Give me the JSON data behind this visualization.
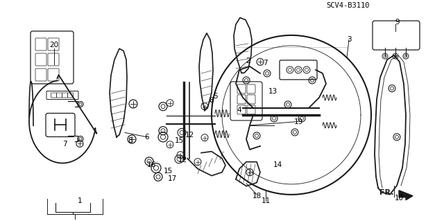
{
  "background_color": "#ffffff",
  "line_color": "#1a1a1a",
  "label_color": "#000000",
  "figsize": [
    6.4,
    3.19
  ],
  "dpi": 100,
  "diagram_id": "SCV4-B3110",
  "fr_text": "FR.",
  "parts": {
    "labels": [
      "1",
      "2",
      "3",
      "4",
      "5",
      "6",
      "7",
      "7",
      "8",
      "8",
      "9",
      "10",
      "11",
      "12",
      "12",
      "13",
      "14",
      "15",
      "15",
      "16",
      "17",
      "18",
      "19",
      "20"
    ],
    "x": [
      0.175,
      0.36,
      0.575,
      0.345,
      0.31,
      0.215,
      0.095,
      0.385,
      0.185,
      0.305,
      0.74,
      0.87,
      0.483,
      0.265,
      0.278,
      0.4,
      0.4,
      0.248,
      0.263,
      0.222,
      0.25,
      0.378,
      0.432,
      0.09
    ],
    "y": [
      0.9,
      0.27,
      0.215,
      0.5,
      0.435,
      0.59,
      0.645,
      0.285,
      0.615,
      0.455,
      0.115,
      0.88,
      0.905,
      0.72,
      0.61,
      0.425,
      0.74,
      0.775,
      0.64,
      0.745,
      0.808,
      0.882,
      0.55,
      0.225
    ]
  }
}
